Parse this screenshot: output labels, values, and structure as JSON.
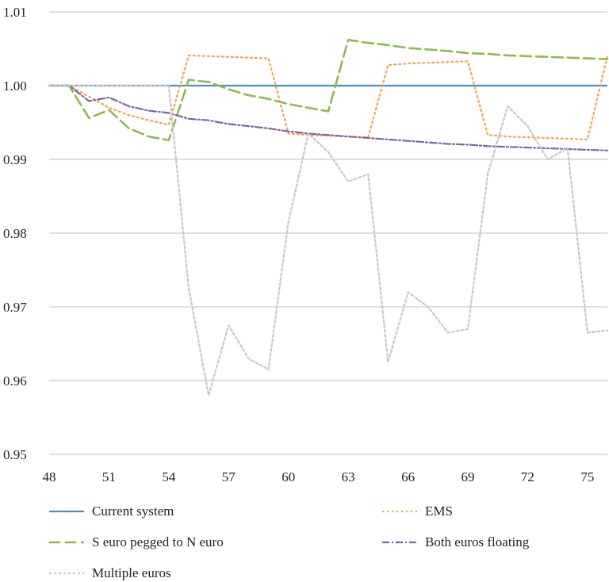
{
  "chart_data": {
    "type": "line",
    "title": "",
    "xlabel": "",
    "ylabel": "",
    "x": [
      48,
      49,
      50,
      51,
      52,
      53,
      54,
      55,
      56,
      57,
      58,
      59,
      60,
      61,
      62,
      63,
      64,
      65,
      66,
      67,
      68,
      69,
      70,
      71,
      72,
      73,
      74,
      75,
      76
    ],
    "xticks": [
      "48",
      "51",
      "54",
      "57",
      "60",
      "63",
      "66",
      "69",
      "72",
      "75"
    ],
    "xlim": [
      48,
      76
    ],
    "ylim": [
      0.95,
      1.01
    ],
    "yticks": [
      "0.95",
      "0.96",
      "0.97",
      "0.98",
      "0.99",
      "1.00",
      "1.01"
    ],
    "grid": "horizontal",
    "legend_position": "bottom",
    "series": [
      {
        "name": "Current system",
        "color": "#4f8fc0",
        "dash": "solid",
        "values": [
          1.0,
          1.0,
          1.0,
          1.0,
          1.0,
          1.0,
          1.0,
          1.0,
          1.0,
          1.0,
          1.0,
          1.0,
          1.0,
          1.0,
          1.0,
          1.0,
          1.0,
          1.0,
          1.0,
          1.0,
          1.0,
          1.0,
          1.0,
          1.0,
          1.0,
          1.0,
          1.0,
          1.0,
          1.0
        ]
      },
      {
        "name": "EMS",
        "color": "#f5a04a",
        "dash": "dotted",
        "values": [
          1.0,
          1.0,
          0.9985,
          0.997,
          0.996,
          0.9953,
          0.9947,
          1.0041,
          1.004,
          1.0039,
          1.0038,
          1.0037,
          0.9935,
          0.9933,
          0.9932,
          0.9931,
          0.993,
          1.0028,
          1.003,
          1.0031,
          1.0032,
          1.0033,
          0.9933,
          0.9931,
          0.993,
          0.9929,
          0.9928,
          0.9927,
          1.004
        ]
      },
      {
        "name": "S euro pegged to N euro",
        "color": "#8dbb4d",
        "dash": "dashed",
        "values": [
          1.0,
          1.0,
          0.9956,
          0.9967,
          0.9942,
          0.9931,
          0.9926,
          1.0008,
          1.0005,
          0.9995,
          0.9987,
          0.9982,
          0.9975,
          0.997,
          0.9965,
          1.0062,
          1.0058,
          1.0055,
          1.0051,
          1.0049,
          1.0047,
          1.0044,
          1.0043,
          1.0041,
          1.004,
          1.0039,
          1.0038,
          1.0037,
          1.0036
        ]
      },
      {
        "name": "Both euros floating",
        "color": "#8064a2",
        "dash": "dashdot",
        "values": [
          1.0,
          1.0,
          0.9979,
          0.9984,
          0.9972,
          0.9966,
          0.9963,
          0.9955,
          0.9953,
          0.9948,
          0.9945,
          0.9942,
          0.9938,
          0.9935,
          0.9933,
          0.9931,
          0.9929,
          0.9927,
          0.9925,
          0.9923,
          0.9921,
          0.992,
          0.9918,
          0.9917,
          0.9916,
          0.9915,
          0.9914,
          0.9913,
          0.9912
        ]
      },
      {
        "name": "Multiple euros",
        "color": "#c8c8c8",
        "dash": "dotted-short",
        "values": [
          1.0,
          1.0,
          1.0,
          1.0,
          1.0,
          1.0,
          1.0,
          0.9725,
          0.958,
          0.9675,
          0.963,
          0.9615,
          0.9815,
          0.9935,
          0.991,
          0.987,
          0.988,
          0.9625,
          0.972,
          0.97,
          0.9665,
          0.967,
          0.988,
          0.9972,
          0.9945,
          0.99,
          0.9915,
          0.9665,
          0.9668
        ]
      }
    ]
  }
}
